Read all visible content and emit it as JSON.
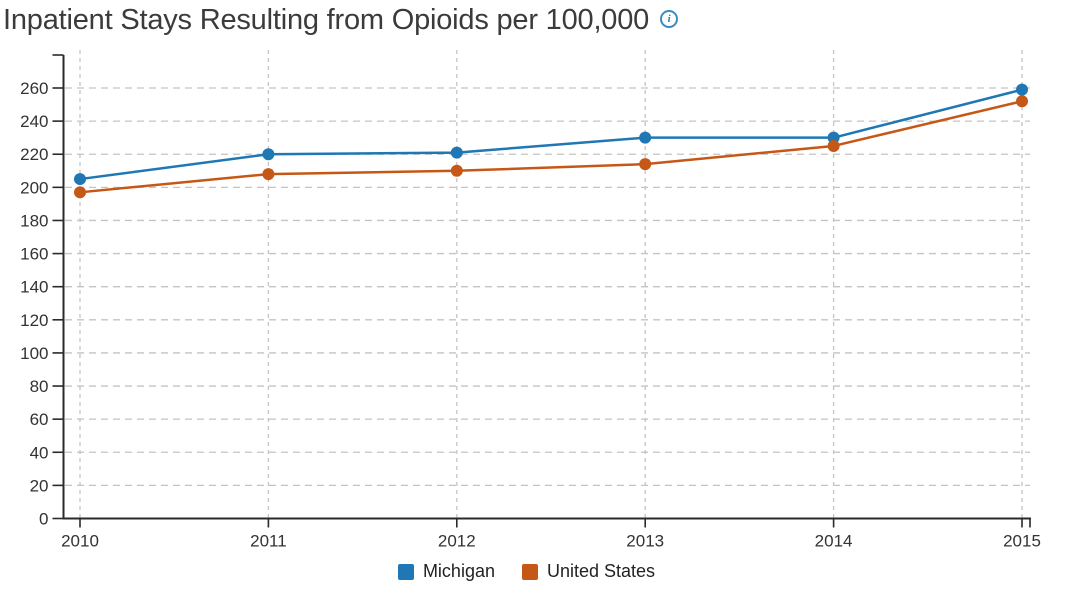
{
  "header": {
    "title": "Inpatient Stays Resulting from Opioids per 100,000",
    "info_icon": "i"
  },
  "chart_data": {
    "type": "line",
    "title": "Inpatient Stays Resulting from Opioids per 100,000",
    "x": [
      "2010",
      "2011",
      "2012",
      "2013",
      "2014",
      "2015"
    ],
    "series": [
      {
        "name": "Michigan",
        "color": "#1f77b4",
        "values": [
          205,
          220,
          221,
          230,
          230,
          259
        ]
      },
      {
        "name": "United States",
        "color": "#c65817",
        "values": [
          197,
          208,
          210,
          214,
          225,
          252
        ]
      }
    ],
    "xlabel": "",
    "ylabel": "",
    "ylim": [
      0,
      280
    ],
    "ytick_step": 20,
    "ytick_labels": [
      "0",
      "20",
      "40",
      "60",
      "80",
      "100",
      "120",
      "140",
      "160",
      "180",
      "200",
      "220",
      "240",
      "260"
    ],
    "grid": "dashed horizontal and vertical",
    "legend_position": "bottom-center",
    "axis_color": "#2a2a2a",
    "grid_color": "#c4c4c4",
    "tick_label_color": "#333333",
    "marker": "circle",
    "marker_radius": 6,
    "line_width": 2.5
  }
}
